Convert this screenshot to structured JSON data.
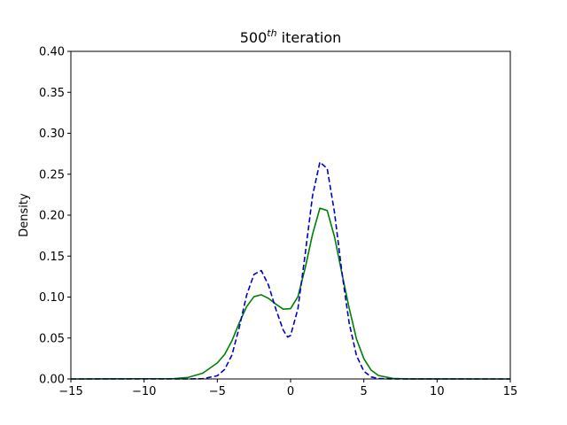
{
  "chart_data": {
    "type": "line",
    "title": {
      "base": "500",
      "superscript": "th",
      "rest": " iteration"
    },
    "xlabel": "",
    "ylabel": "Density",
    "xlim": [
      -15,
      15
    ],
    "ylim": [
      0,
      0.4
    ],
    "xticks": [
      -15,
      -10,
      -5,
      0,
      5,
      10,
      15
    ],
    "xtick_labels": [
      "−15",
      "−10",
      "−5",
      "0",
      "5",
      "10",
      "15"
    ],
    "yticks": [
      0,
      0.05,
      0.1,
      0.15,
      0.2,
      0.25,
      0.3,
      0.35,
      0.4
    ],
    "ytick_labels": [
      "0.00",
      "0.05",
      "0.10",
      "0.15",
      "0.20",
      "0.25",
      "0.30",
      "0.35",
      "0.40"
    ],
    "grid": false,
    "legend": "none",
    "series": [
      {
        "color": "#008000",
        "style": "solid",
        "x": [
          -15,
          -8,
          -7,
          -6,
          -5,
          -4.5,
          -4,
          -3.5,
          -3,
          -2.5,
          -2,
          -1.5,
          -1,
          -0.5,
          0,
          0.5,
          1,
          1.5,
          2,
          2.5,
          3,
          3.5,
          4,
          4.5,
          5,
          5.5,
          6,
          7,
          8,
          15
        ],
        "y": [
          0,
          0.0004,
          0.0019,
          0.007,
          0.0196,
          0.03,
          0.0468,
          0.0687,
          0.0883,
          0.1005,
          0.1028,
          0.0983,
          0.0913,
          0.0852,
          0.0859,
          0.1005,
          0.1357,
          0.1767,
          0.2085,
          0.2056,
          0.1735,
          0.1292,
          0.0865,
          0.0487,
          0.0248,
          0.0108,
          0.0042,
          0.0006,
          0.0001,
          0
        ]
      },
      {
        "color": "#0000cc",
        "style": "dashed",
        "x": [
          -15,
          -7,
          -6,
          -5,
          -4.5,
          -4,
          -3.5,
          -3,
          -2.5,
          -2,
          -1.5,
          -1,
          -0.5,
          -0.2,
          0,
          0.5,
          1,
          1.5,
          2,
          2.5,
          3,
          3.5,
          4,
          4.5,
          5,
          5.5,
          6,
          7,
          15
        ],
        "y": [
          0,
          0,
          0.0003,
          0.0039,
          0.0117,
          0.0294,
          0.0633,
          0.1024,
          0.1276,
          0.1324,
          0.1142,
          0.0849,
          0.0596,
          0.0512,
          0.0531,
          0.0857,
          0.1529,
          0.2239,
          0.2648,
          0.2569,
          0.2031,
          0.1307,
          0.0682,
          0.0285,
          0.0095,
          0.0025,
          0.0005,
          0,
          0
        ]
      }
    ]
  }
}
